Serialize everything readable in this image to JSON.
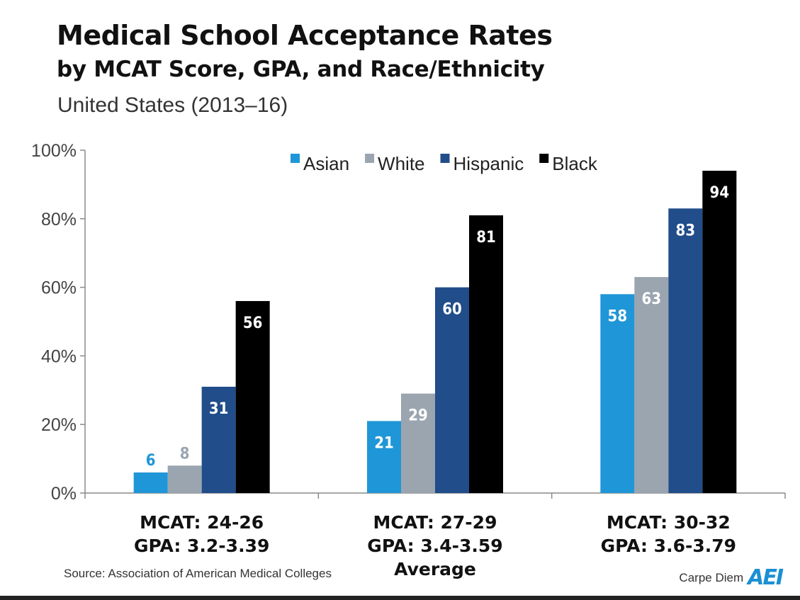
{
  "header": {
    "title_line1": "Medical School Acceptance Rates",
    "title_line2": "by MCAT Score, GPA, and Race/Ethnicity",
    "subtitle": "United States (2013–16)"
  },
  "footer": {
    "source": "Source: Association of American Medical Colleges",
    "brand_text": "Carpe Diem",
    "brand_logo": "AEI"
  },
  "chart_data": {
    "type": "bar",
    "title": "Medical School Acceptance Rates by MCAT Score, GPA, and Race/Ethnicity",
    "subtitle": "United States (2013–16)",
    "categories": [
      [
        "MCAT: 24-26",
        "GPA: 3.2-3.39"
      ],
      [
        "MCAT: 27-29",
        "GPA: 3.4-3.59",
        "Average"
      ],
      [
        "MCAT: 30-32",
        "GPA: 3.6-3.79"
      ]
    ],
    "series": [
      {
        "name": "Asian",
        "color": "#1f96d7",
        "label_color": "#1f96d7",
        "values": [
          6,
          21,
          58
        ]
      },
      {
        "name": "White",
        "color": "#9aa5b0",
        "label_color": "#9aa5b0",
        "values": [
          8,
          29,
          63
        ]
      },
      {
        "name": "Hispanic",
        "color": "#214d8a",
        "label_color": "#ffffff",
        "values": [
          31,
          60,
          83
        ]
      },
      {
        "name": "Black",
        "color": "#000000",
        "label_color": "#ffffff",
        "values": [
          56,
          81,
          94
        ]
      }
    ],
    "yticks": [
      "0%",
      "20%",
      "40%",
      "60%",
      "80%",
      "100%"
    ],
    "ylim": [
      0,
      100
    ],
    "legend_position": "top-center",
    "grid": false
  }
}
